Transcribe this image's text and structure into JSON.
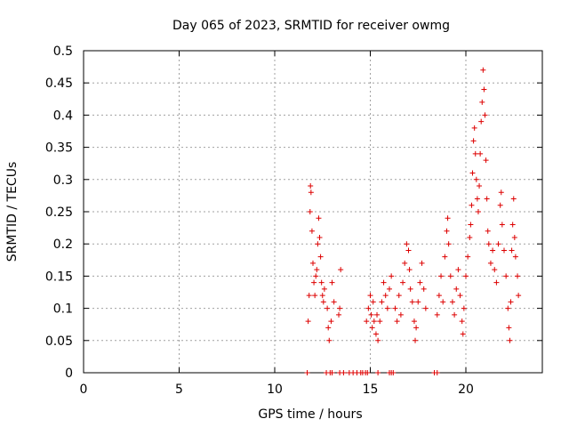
{
  "chart_data": {
    "type": "scatter",
    "title": "Day 065 of 2023, SRMTID for receiver owmg",
    "xlabel": "GPS time / hours",
    "ylabel": "SRMTID / TECUs",
    "xlim": [
      0,
      24
    ],
    "ylim": [
      0,
      0.5
    ],
    "grid": true,
    "marker": "plus",
    "color": "#dd0000",
    "x_ticks": [
      0,
      5,
      10,
      15,
      20
    ],
    "x_tick_labels": [
      "0",
      "5",
      "10",
      "15",
      "20"
    ],
    "y_ticks": [
      0,
      0.05,
      0.1,
      0.15,
      0.2,
      0.25,
      0.3,
      0.35,
      0.4,
      0.45,
      0.5
    ],
    "y_tick_labels": [
      "0",
      "0.05",
      "0.1",
      "0.15",
      "0.2",
      "0.25",
      "0.3",
      "0.35",
      "0.4",
      "0.45",
      "0.5"
    ],
    "series": [
      {
        "name": "SRMTID",
        "points": [
          [
            11.7,
            0
          ],
          [
            12.7,
            0
          ],
          [
            12.9,
            0
          ],
          [
            13.0,
            0
          ],
          [
            13.4,
            0
          ],
          [
            13.6,
            0
          ],
          [
            13.9,
            0
          ],
          [
            14.1,
            0
          ],
          [
            14.3,
            0
          ],
          [
            14.5,
            0
          ],
          [
            14.6,
            0
          ],
          [
            14.75,
            0
          ],
          [
            14.85,
            0
          ],
          [
            15.4,
            0
          ],
          [
            16.0,
            0
          ],
          [
            16.1,
            0
          ],
          [
            16.2,
            0
          ],
          [
            18.35,
            0
          ],
          [
            18.5,
            0
          ],
          [
            11.75,
            0.08
          ],
          [
            11.8,
            0.12
          ],
          [
            11.85,
            0.25
          ],
          [
            11.87,
            0.29
          ],
          [
            11.9,
            0.28
          ],
          [
            11.95,
            0.22
          ],
          [
            12.0,
            0.17
          ],
          [
            12.05,
            0.14
          ],
          [
            12.1,
            0.12
          ],
          [
            12.15,
            0.15
          ],
          [
            12.2,
            0.16
          ],
          [
            12.25,
            0.2
          ],
          [
            12.3,
            0.24
          ],
          [
            12.35,
            0.21
          ],
          [
            12.4,
            0.18
          ],
          [
            12.45,
            0.14
          ],
          [
            12.5,
            0.12
          ],
          [
            12.55,
            0.11
          ],
          [
            12.6,
            0.13
          ],
          [
            12.75,
            0.1
          ],
          [
            12.8,
            0.07
          ],
          [
            12.85,
            0.05
          ],
          [
            12.95,
            0.08
          ],
          [
            13.0,
            0.14
          ],
          [
            13.1,
            0.11
          ],
          [
            13.35,
            0.09
          ],
          [
            13.4,
            0.1
          ],
          [
            13.45,
            0.16
          ],
          [
            14.8,
            0.08
          ],
          [
            14.9,
            0.1
          ],
          [
            15.0,
            0.12
          ],
          [
            15.05,
            0.09
          ],
          [
            15.1,
            0.07
          ],
          [
            15.15,
            0.11
          ],
          [
            15.2,
            0.08
          ],
          [
            15.3,
            0.06
          ],
          [
            15.35,
            0.09
          ],
          [
            15.4,
            0.05
          ],
          [
            15.5,
            0.08
          ],
          [
            15.6,
            0.11
          ],
          [
            15.7,
            0.14
          ],
          [
            15.8,
            0.12
          ],
          [
            15.9,
            0.1
          ],
          [
            16.0,
            0.13
          ],
          [
            16.1,
            0.15
          ],
          [
            16.3,
            0.1
          ],
          [
            16.4,
            0.08
          ],
          [
            16.5,
            0.12
          ],
          [
            16.6,
            0.09
          ],
          [
            16.7,
            0.14
          ],
          [
            16.8,
            0.17
          ],
          [
            16.9,
            0.2
          ],
          [
            17.0,
            0.19
          ],
          [
            17.05,
            0.16
          ],
          [
            17.1,
            0.13
          ],
          [
            17.2,
            0.11
          ],
          [
            17.3,
            0.08
          ],
          [
            17.35,
            0.05
          ],
          [
            17.4,
            0.07
          ],
          [
            17.5,
            0.11
          ],
          [
            17.6,
            0.14
          ],
          [
            17.7,
            0.17
          ],
          [
            17.8,
            0.13
          ],
          [
            17.9,
            0.1
          ],
          [
            18.5,
            0.09
          ],
          [
            18.6,
            0.12
          ],
          [
            18.7,
            0.15
          ],
          [
            18.8,
            0.11
          ],
          [
            18.9,
            0.18
          ],
          [
            19.0,
            0.22
          ],
          [
            19.05,
            0.24
          ],
          [
            19.1,
            0.2
          ],
          [
            19.2,
            0.15
          ],
          [
            19.3,
            0.11
          ],
          [
            19.4,
            0.09
          ],
          [
            19.5,
            0.13
          ],
          [
            19.6,
            0.16
          ],
          [
            19.7,
            0.12
          ],
          [
            19.8,
            0.08
          ],
          [
            19.85,
            0.06
          ],
          [
            19.9,
            0.1
          ],
          [
            20.0,
            0.15
          ],
          [
            20.1,
            0.18
          ],
          [
            20.2,
            0.21
          ],
          [
            20.25,
            0.23
          ],
          [
            20.3,
            0.26
          ],
          [
            20.35,
            0.31
          ],
          [
            20.4,
            0.36
          ],
          [
            20.45,
            0.38
          ],
          [
            20.5,
            0.34
          ],
          [
            20.55,
            0.3
          ],
          [
            20.6,
            0.27
          ],
          [
            20.65,
            0.25
          ],
          [
            20.7,
            0.29
          ],
          [
            20.75,
            0.34
          ],
          [
            20.8,
            0.39
          ],
          [
            20.85,
            0.42
          ],
          [
            20.9,
            0.47
          ],
          [
            20.95,
            0.44
          ],
          [
            21.0,
            0.4
          ],
          [
            21.05,
            0.33
          ],
          [
            21.1,
            0.27
          ],
          [
            21.15,
            0.22
          ],
          [
            21.2,
            0.2
          ],
          [
            21.3,
            0.17
          ],
          [
            21.4,
            0.19
          ],
          [
            21.5,
            0.16
          ],
          [
            21.6,
            0.14
          ],
          [
            21.7,
            0.2
          ],
          [
            21.8,
            0.26
          ],
          [
            21.85,
            0.28
          ],
          [
            21.9,
            0.23
          ],
          [
            22.0,
            0.19
          ],
          [
            22.1,
            0.15
          ],
          [
            22.2,
            0.1
          ],
          [
            22.25,
            0.07
          ],
          [
            22.3,
            0.05
          ],
          [
            22.35,
            0.11
          ],
          [
            22.4,
            0.19
          ],
          [
            22.45,
            0.23
          ],
          [
            22.5,
            0.27
          ],
          [
            22.55,
            0.21
          ],
          [
            22.6,
            0.18
          ],
          [
            22.7,
            0.15
          ],
          [
            22.75,
            0.12
          ]
        ]
      }
    ]
  }
}
